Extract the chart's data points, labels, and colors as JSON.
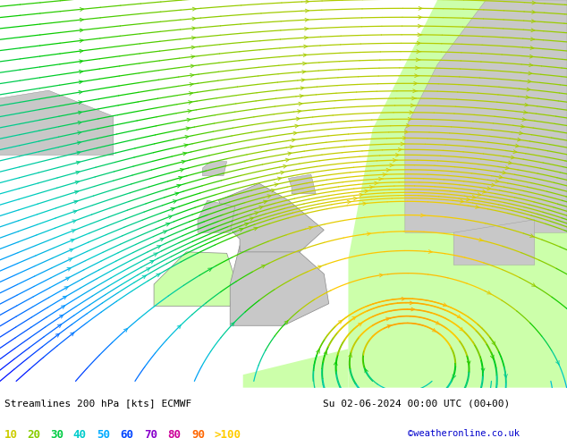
{
  "title_left": "Streamlines 200 hPa [kts] ECMWF",
  "title_right": "Su 02-06-2024 00:00 UTC (00+00)",
  "credit": "©weatheronline.co.uk",
  "legend_labels": [
    "10",
    "20",
    "30",
    "40",
    "50",
    "60",
    "70",
    "80",
    "90",
    ">100"
  ],
  "legend_colors_hex": [
    "#aaaa00",
    "#88cc00",
    "#00cc44",
    "#00ccaa",
    "#00aaff",
    "#0055ff",
    "#7700cc",
    "#cc00cc",
    "#ff6600",
    "#ffcc00"
  ],
  "bg_color": "#e0e0e0",
  "ocean_color": "#e0e0e0",
  "land_gray": "#c8c8c8",
  "land_green": "#ccffaa",
  "figsize": [
    6.34,
    4.9
  ],
  "dpi": 100,
  "lon_min": -20,
  "lon_max": 15,
  "lat_min": 45,
  "lat_max": 75,
  "vortex_lon": 5.0,
  "vortex_lat": 48.0
}
